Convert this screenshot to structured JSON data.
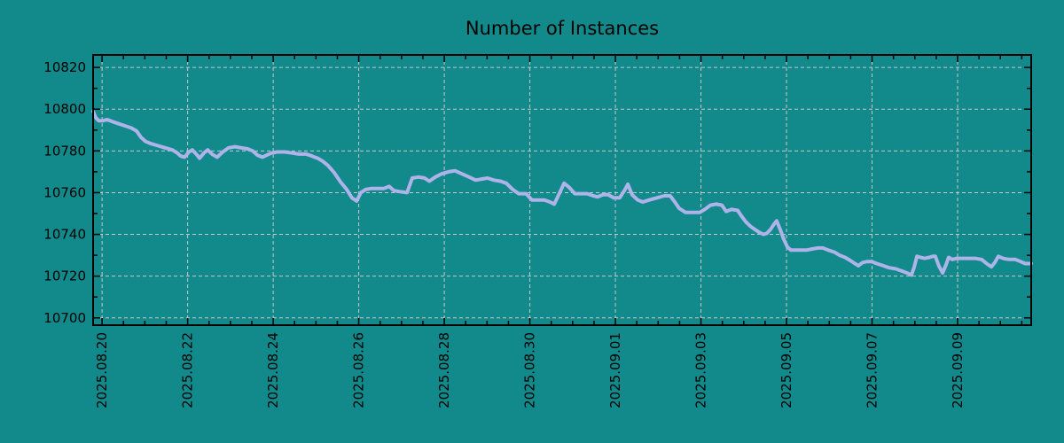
{
  "colors": {
    "background": "#12898a",
    "line": "#aeb3ea",
    "grid": "#c8c8c8",
    "axis": "#000000",
    "text": "#000000"
  },
  "chart_data": {
    "type": "line",
    "title": "Number of Instances",
    "legend": "none",
    "grid": "dashed-major-both-axes",
    "x_axis": {
      "label": "",
      "tick_labels": [
        "2025.08.20",
        "2025.08.22",
        "2025.08.24",
        "2025.08.26",
        "2025.08.28",
        "2025.08.30",
        "2025.09.01",
        "2025.09.03",
        "2025.09.05",
        "2025.09.07",
        "2025.09.09"
      ],
      "tick_days": [
        0,
        2,
        4,
        6,
        8,
        10,
        12,
        14,
        16,
        18,
        20
      ],
      "minor_tick_interval_days": 0.5,
      "range_days": [
        -0.21,
        21.72
      ],
      "labels_rotated_degrees": -90
    },
    "y_axis": {
      "label": "",
      "ticks": [
        10700,
        10720,
        10740,
        10760,
        10780,
        10800,
        10820
      ],
      "minor_tick_interval": 10,
      "range": [
        10696.5,
        10826
      ]
    },
    "series": [
      {
        "name": "instances",
        "color": "#aeb3ea",
        "points": [
          [
            -0.21,
            10799
          ],
          [
            -0.15,
            10796
          ],
          [
            -0.08,
            10794.5
          ],
          [
            0.02,
            10794.5
          ],
          [
            0.12,
            10795
          ],
          [
            0.25,
            10794
          ],
          [
            0.39,
            10793
          ],
          [
            0.54,
            10792
          ],
          [
            0.68,
            10791
          ],
          [
            0.81,
            10789.5
          ],
          [
            0.91,
            10786.5
          ],
          [
            1.02,
            10784.5
          ],
          [
            1.14,
            10783.5
          ],
          [
            1.31,
            10782.5
          ],
          [
            1.47,
            10781.5
          ],
          [
            1.64,
            10780.5
          ],
          [
            1.76,
            10779
          ],
          [
            1.84,
            10777.5
          ],
          [
            1.93,
            10777
          ],
          [
            2.03,
            10779.5
          ],
          [
            2.11,
            10780.5
          ],
          [
            2.2,
            10778.5
          ],
          [
            2.28,
            10776.5
          ],
          [
            2.38,
            10779
          ],
          [
            2.47,
            10780.5
          ],
          [
            2.57,
            10778.5
          ],
          [
            2.69,
            10777
          ],
          [
            2.82,
            10779.5
          ],
          [
            2.96,
            10781.5
          ],
          [
            3.11,
            10782
          ],
          [
            3.25,
            10781.5
          ],
          [
            3.4,
            10781
          ],
          [
            3.52,
            10780
          ],
          [
            3.63,
            10778
          ],
          [
            3.75,
            10777
          ],
          [
            3.85,
            10778
          ],
          [
            3.96,
            10779
          ],
          [
            4.1,
            10779.5
          ],
          [
            4.27,
            10779.5
          ],
          [
            4.44,
            10779
          ],
          [
            4.6,
            10778.5
          ],
          [
            4.77,
            10778.5
          ],
          [
            4.91,
            10777.5
          ],
          [
            5.04,
            10776.5
          ],
          [
            5.16,
            10775
          ],
          [
            5.28,
            10773
          ],
          [
            5.43,
            10769.5
          ],
          [
            5.58,
            10765
          ],
          [
            5.72,
            10761.5
          ],
          [
            5.84,
            10757.5
          ],
          [
            5.95,
            10756
          ],
          [
            6.05,
            10760
          ],
          [
            6.16,
            10761.5
          ],
          [
            6.3,
            10762
          ],
          [
            6.45,
            10762
          ],
          [
            6.59,
            10762
          ],
          [
            6.71,
            10763
          ],
          [
            6.82,
            10761
          ],
          [
            6.96,
            10760.5
          ],
          [
            7.13,
            10760
          ],
          [
            7.25,
            10767
          ],
          [
            7.4,
            10767.5
          ],
          [
            7.54,
            10767
          ],
          [
            7.65,
            10765.5
          ],
          [
            7.79,
            10767.5
          ],
          [
            7.94,
            10769
          ],
          [
            8.1,
            10770
          ],
          [
            8.25,
            10770.5
          ],
          [
            8.41,
            10769
          ],
          [
            8.58,
            10767.5
          ],
          [
            8.73,
            10766
          ],
          [
            8.87,
            10766.5
          ],
          [
            9.01,
            10767
          ],
          [
            9.16,
            10766
          ],
          [
            9.31,
            10765.5
          ],
          [
            9.45,
            10764.5
          ],
          [
            9.6,
            10761.5
          ],
          [
            9.74,
            10759.5
          ],
          [
            9.91,
            10759.5
          ],
          [
            10.05,
            10756.5
          ],
          [
            10.2,
            10756.5
          ],
          [
            10.34,
            10756.5
          ],
          [
            10.47,
            10755.5
          ],
          [
            10.57,
            10754.5
          ],
          [
            10.7,
            10760
          ],
          [
            10.8,
            10764.5
          ],
          [
            10.92,
            10762.5
          ],
          [
            11.05,
            10759.5
          ],
          [
            11.19,
            10759.5
          ],
          [
            11.34,
            10759.5
          ],
          [
            11.48,
            10758.5
          ],
          [
            11.58,
            10758
          ],
          [
            11.71,
            10759
          ],
          [
            11.83,
            10759
          ],
          [
            11.96,
            10757.5
          ],
          [
            12.1,
            10757.5
          ],
          [
            12.21,
            10761
          ],
          [
            12.29,
            10764
          ],
          [
            12.39,
            10759
          ],
          [
            12.52,
            10756.5
          ],
          [
            12.64,
            10755.5
          ],
          [
            12.79,
            10756.5
          ],
          [
            12.97,
            10757.5
          ],
          [
            13.14,
            10758.5
          ],
          [
            13.28,
            10758.5
          ],
          [
            13.39,
            10755.5
          ],
          [
            13.49,
            10752.5
          ],
          [
            13.64,
            10750.5
          ],
          [
            13.8,
            10750.5
          ],
          [
            13.97,
            10750.5
          ],
          [
            14.09,
            10752
          ],
          [
            14.22,
            10754
          ],
          [
            14.36,
            10754.5
          ],
          [
            14.49,
            10754
          ],
          [
            14.59,
            10751
          ],
          [
            14.72,
            10752
          ],
          [
            14.86,
            10751.5
          ],
          [
            14.94,
            10749
          ],
          [
            15.05,
            10746
          ],
          [
            15.15,
            10744
          ],
          [
            15.25,
            10742.5
          ],
          [
            15.36,
            10741
          ],
          [
            15.46,
            10740
          ],
          [
            15.54,
            10740.5
          ],
          [
            15.63,
            10742.5
          ],
          [
            15.71,
            10745
          ],
          [
            15.77,
            10746.5
          ],
          [
            15.85,
            10742.5
          ],
          [
            15.94,
            10737.5
          ],
          [
            16.02,
            10734
          ],
          [
            16.1,
            10732.5
          ],
          [
            16.23,
            10732.5
          ],
          [
            16.35,
            10732.5
          ],
          [
            16.48,
            10732.5
          ],
          [
            16.6,
            10733
          ],
          [
            16.73,
            10733.5
          ],
          [
            16.85,
            10733.5
          ],
          [
            16.97,
            10732.5
          ],
          [
            17.12,
            10731.5
          ],
          [
            17.24,
            10730
          ],
          [
            17.37,
            10729
          ],
          [
            17.49,
            10727.5
          ],
          [
            17.6,
            10726
          ],
          [
            17.68,
            10725
          ],
          [
            17.78,
            10726.5
          ],
          [
            17.89,
            10727
          ],
          [
            17.99,
            10727
          ],
          [
            18.11,
            10726
          ],
          [
            18.26,
            10725
          ],
          [
            18.4,
            10724
          ],
          [
            18.55,
            10723.5
          ],
          [
            18.69,
            10722.5
          ],
          [
            18.82,
            10721.5
          ],
          [
            18.92,
            10720.5
          ],
          [
            18.98,
            10724
          ],
          [
            19.05,
            10729.5
          ],
          [
            19.13,
            10729
          ],
          [
            19.23,
            10728.5
          ],
          [
            19.34,
            10729
          ],
          [
            19.42,
            10729.5
          ],
          [
            19.48,
            10729.5
          ],
          [
            19.56,
            10725
          ],
          [
            19.65,
            10721.5
          ],
          [
            19.73,
            10725.5
          ],
          [
            19.79,
            10729
          ],
          [
            19.88,
            10728
          ],
          [
            19.98,
            10728.5
          ],
          [
            20.12,
            10728.5
          ],
          [
            20.27,
            10728.5
          ],
          [
            20.41,
            10728.5
          ],
          [
            20.56,
            10728
          ],
          [
            20.68,
            10726
          ],
          [
            20.79,
            10724.5
          ],
          [
            20.87,
            10726.5
          ],
          [
            20.95,
            10729.5
          ],
          [
            21.06,
            10728.5
          ],
          [
            21.2,
            10728
          ],
          [
            21.35,
            10728
          ],
          [
            21.47,
            10727
          ],
          [
            21.58,
            10726
          ],
          [
            21.72,
            10726
          ]
        ]
      }
    ]
  }
}
